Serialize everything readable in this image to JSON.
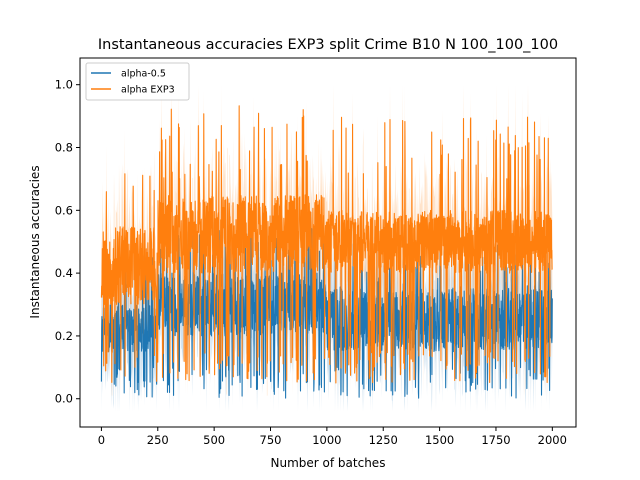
{
  "chart_data": {
    "type": "line",
    "title": "Instantaneous accuracies EXP3 split Crime B10 N 100_100_100",
    "xlabel": "Number of batches",
    "ylabel": "Instantaneous accuracies",
    "xlim": [
      -95,
      2105
    ],
    "ylim": [
      -0.09,
      1.085
    ],
    "x_ticks": [
      0,
      250,
      500,
      750,
      1000,
      1250,
      1500,
      1750,
      2000
    ],
    "x_tick_labels": [
      "0",
      "250",
      "500",
      "750",
      "1000",
      "1250",
      "1500",
      "1750",
      "2000"
    ],
    "y_ticks": [
      0.0,
      0.2,
      0.4,
      0.6,
      0.8,
      1.0
    ],
    "y_tick_labels": [
      "0.0",
      "0.2",
      "0.4",
      "0.6",
      "0.8",
      "1.0"
    ],
    "grid": false,
    "legend_position": "top-left",
    "n_batches": 2000,
    "series": [
      {
        "name": "alpha-0.5",
        "color": "#1f77b4",
        "shading": "mean ± std band (lighter)",
        "min_value": 0.0,
        "segments": [
          {
            "x": [
              0,
              250
            ],
            "mean_range": [
              0.15,
              0.3
            ],
            "low_range": [
              0.0,
              0.1
            ],
            "high_range": [
              0.3,
              0.5
            ]
          },
          {
            "x": [
              250,
              1000
            ],
            "mean_range": [
              0.2,
              0.4
            ],
            "low_range": [
              0.0,
              0.1
            ],
            "high_range": [
              0.45,
              0.55
            ]
          },
          {
            "x": [
              1000,
              2000
            ],
            "mean_range": [
              0.15,
              0.35
            ],
            "low_range": [
              0.1,
              0.15
            ],
            "high_range": [
              0.35,
              0.5
            ]
          }
        ]
      },
      {
        "name": "alpha EXP3",
        "color": "#ff7f0e",
        "shading": "mean ± std band (lighter)",
        "min_value": 0.05,
        "segments": [
          {
            "x": [
              0,
              250
            ],
            "mean_range": [
              0.3,
              0.55
            ],
            "low_range": [
              0.1,
              0.2
            ],
            "high_range": [
              0.5,
              0.75
            ]
          },
          {
            "x": [
              250,
              1000
            ],
            "mean_range": [
              0.4,
              0.65
            ],
            "low_range": [
              0.2,
              0.35
            ],
            "high_range": [
              0.7,
              0.95
            ]
          },
          {
            "x": [
              1000,
              2000
            ],
            "mean_range": [
              0.4,
              0.6
            ],
            "low_range": [
              0.25,
              0.35
            ],
            "high_range": [
              0.7,
              0.9
            ]
          }
        ]
      }
    ]
  }
}
